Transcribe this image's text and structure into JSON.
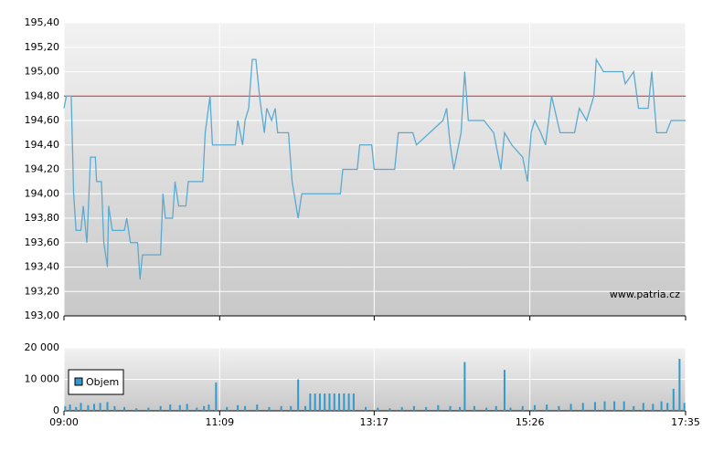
{
  "chart_data": [
    {
      "type": "line",
      "watermark": "www.patria.cz",
      "x": [
        "09:00",
        "09:02",
        "09:06",
        "09:08",
        "09:10",
        "09:14",
        "09:16",
        "09:19",
        "09:22",
        "09:26",
        "09:27",
        "09:31",
        "09:33",
        "09:36",
        "09:37",
        "09:40",
        "09:50",
        "09:52",
        "09:55",
        "10:01",
        "10:03",
        "10:05",
        "10:20",
        "10:22",
        "10:24",
        "10:30",
        "10:32",
        "10:35",
        "10:41",
        "10:43",
        "10:55",
        "10:57",
        "11:01",
        "11:03",
        "11:22",
        "11:24",
        "11:28",
        "11:30",
        "11:33",
        "11:36",
        "11:39",
        "11:42",
        "11:46",
        "11:48",
        "11:52",
        "11:55",
        "11:57",
        "12:06",
        "12:09",
        "12:14",
        "12:17",
        "12:49",
        "12:51",
        "13:03",
        "13:05",
        "13:15",
        "13:17",
        "13:34",
        "13:37",
        "13:49",
        "13:52",
        "14:14",
        "14:17",
        "14:20",
        "14:23",
        "14:29",
        "14:32",
        "14:35",
        "14:48",
        "14:56",
        "15:00",
        "15:02",
        "15:05",
        "15:11",
        "15:20",
        "15:24",
        "15:27",
        "15:30",
        "15:35",
        "15:39",
        "15:44",
        "15:51",
        "16:03",
        "16:07",
        "16:13",
        "16:19",
        "16:21",
        "16:27",
        "16:43",
        "16:45",
        "16:52",
        "16:56",
        "17:04",
        "17:07",
        "17:11",
        "17:19",
        "17:23",
        "17:35"
      ],
      "series": [
        {
          "color": "#5aaad2",
          "values": [
            194.7,
            194.8,
            194.8,
            194.0,
            193.7,
            193.7,
            193.9,
            193.6,
            194.3,
            194.3,
            194.1,
            194.1,
            193.6,
            193.4,
            193.9,
            193.7,
            193.7,
            193.8,
            193.6,
            193.6,
            193.3,
            193.5,
            193.5,
            194.0,
            193.8,
            193.8,
            194.1,
            193.9,
            193.9,
            194.1,
            194.1,
            194.5,
            194.8,
            194.4,
            194.4,
            194.6,
            194.4,
            194.6,
            194.7,
            195.1,
            195.1,
            194.8,
            194.5,
            194.7,
            194.6,
            194.7,
            194.5,
            194.5,
            194.1,
            193.8,
            194.0,
            194.0,
            194.2,
            194.2,
            194.4,
            194.4,
            194.2,
            194.2,
            194.5,
            194.5,
            194.4,
            194.6,
            194.7,
            194.4,
            194.2,
            194.5,
            195.0,
            194.6,
            194.6,
            194.5,
            194.3,
            194.2,
            194.5,
            194.4,
            194.3,
            194.1,
            194.5,
            194.6,
            194.5,
            194.4,
            194.8,
            194.5,
            194.5,
            194.7,
            194.6,
            194.8,
            195.1,
            195.0,
            195.0,
            194.9,
            195.0,
            194.7,
            194.7,
            195.0,
            194.5,
            194.5,
            194.6,
            194.6
          ]
        }
      ],
      "reference_line": {
        "value": 194.8,
        "color": "#cc2222"
      },
      "xlim": [
        "09:00",
        "17:35"
      ],
      "xticks": [
        "09:00",
        "11:09",
        "13:17",
        "15:26",
        "17:35"
      ],
      "ylim": [
        193,
        195.4
      ],
      "yticks": [
        {
          "value": 193,
          "label": "193,00"
        },
        {
          "value": 193.2,
          "label": "193,20"
        },
        {
          "value": 193.4,
          "label": "193,40"
        },
        {
          "value": 193.6,
          "label": "193,60"
        },
        {
          "value": 193.8,
          "label": "193,80"
        },
        {
          "value": 194,
          "label": "194,00"
        },
        {
          "value": 194.2,
          "label": "194,20"
        },
        {
          "value": 194.4,
          "label": "194,40"
        },
        {
          "value": 194.6,
          "label": "194,60"
        },
        {
          "value": 194.8,
          "label": "194,80"
        },
        {
          "value": 195,
          "label": "195,00"
        },
        {
          "value": 195.2,
          "label": "195,20"
        },
        {
          "value": 195.4,
          "label": "195,40"
        }
      ],
      "grid": true
    },
    {
      "type": "bar",
      "x": [
        "09:01",
        "09:05",
        "09:10",
        "09:14",
        "09:20",
        "09:25",
        "09:30",
        "09:36",
        "09:42",
        "09:50",
        "10:00",
        "10:10",
        "10:20",
        "10:28",
        "10:36",
        "10:42",
        "10:50",
        "10:56",
        "11:00",
        "11:06",
        "11:15",
        "11:24",
        "11:30",
        "11:40",
        "11:50",
        "12:00",
        "12:08",
        "12:14",
        "12:20",
        "12:24",
        "12:28",
        "12:32",
        "12:36",
        "12:40",
        "12:44",
        "12:48",
        "12:52",
        "12:56",
        "13:00",
        "13:10",
        "13:20",
        "13:30",
        "13:40",
        "13:50",
        "14:00",
        "14:10",
        "14:20",
        "14:28",
        "14:32",
        "14:40",
        "14:50",
        "14:58",
        "15:05",
        "15:10",
        "15:20",
        "15:30",
        "15:40",
        "15:50",
        "16:00",
        "16:10",
        "16:20",
        "16:28",
        "16:36",
        "16:44",
        "16:52",
        "17:00",
        "17:08",
        "17:15",
        "17:20",
        "17:25",
        "17:30",
        "17:34"
      ],
      "series": [
        {
          "name": "Objem",
          "color": "#3399cc",
          "values": [
            1500,
            2000,
            1200,
            2500,
            1800,
            2200,
            2500,
            2800,
            1500,
            1200,
            800,
            1000,
            1500,
            2000,
            1800,
            2200,
            1000,
            1500,
            2000,
            9000,
            1200,
            1800,
            1500,
            2000,
            1200,
            1500,
            1500,
            10000,
            1500,
            5500,
            5500,
            5500,
            5500,
            5500,
            5500,
            5500,
            5500,
            5500,
            5500,
            1200,
            1000,
            800,
            1200,
            1500,
            1200,
            1800,
            1500,
            1200,
            15500,
            1500,
            1000,
            1500,
            13000,
            1000,
            1500,
            1800,
            2000,
            1500,
            2200,
            2500,
            2800,
            3000,
            3000,
            3000,
            1500,
            2500,
            2200,
            3000,
            2500,
            7000,
            16500,
            2500
          ]
        }
      ],
      "xlim": [
        "09:00",
        "17:35"
      ],
      "xticks": [
        "09:00",
        "11:09",
        "13:17",
        "15:26",
        "17:35"
      ],
      "ylim": [
        0,
        20000
      ],
      "yticks": [
        0,
        {
          "value": 10000,
          "label": "10 000"
        },
        {
          "value": 20000,
          "label": "20 000"
        }
      ],
      "legend": "bottom-left",
      "grid": true
    }
  ]
}
